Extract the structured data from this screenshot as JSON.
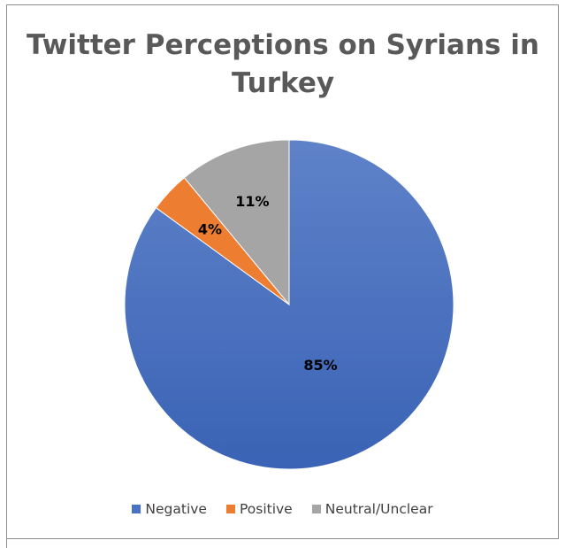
{
  "chart_data": {
    "type": "pie",
    "title": "Twitter Perceptions on Syrians in Turkey",
    "categories": [
      "Negative",
      "Positive",
      "Neutral/Unclear"
    ],
    "values": [
      85,
      4,
      11
    ],
    "data_labels": [
      "85%",
      "4%",
      "11%"
    ],
    "colors": [
      "#4a72c4",
      "#ed7d31",
      "#a5a5a5"
    ],
    "legend": "bottom"
  }
}
